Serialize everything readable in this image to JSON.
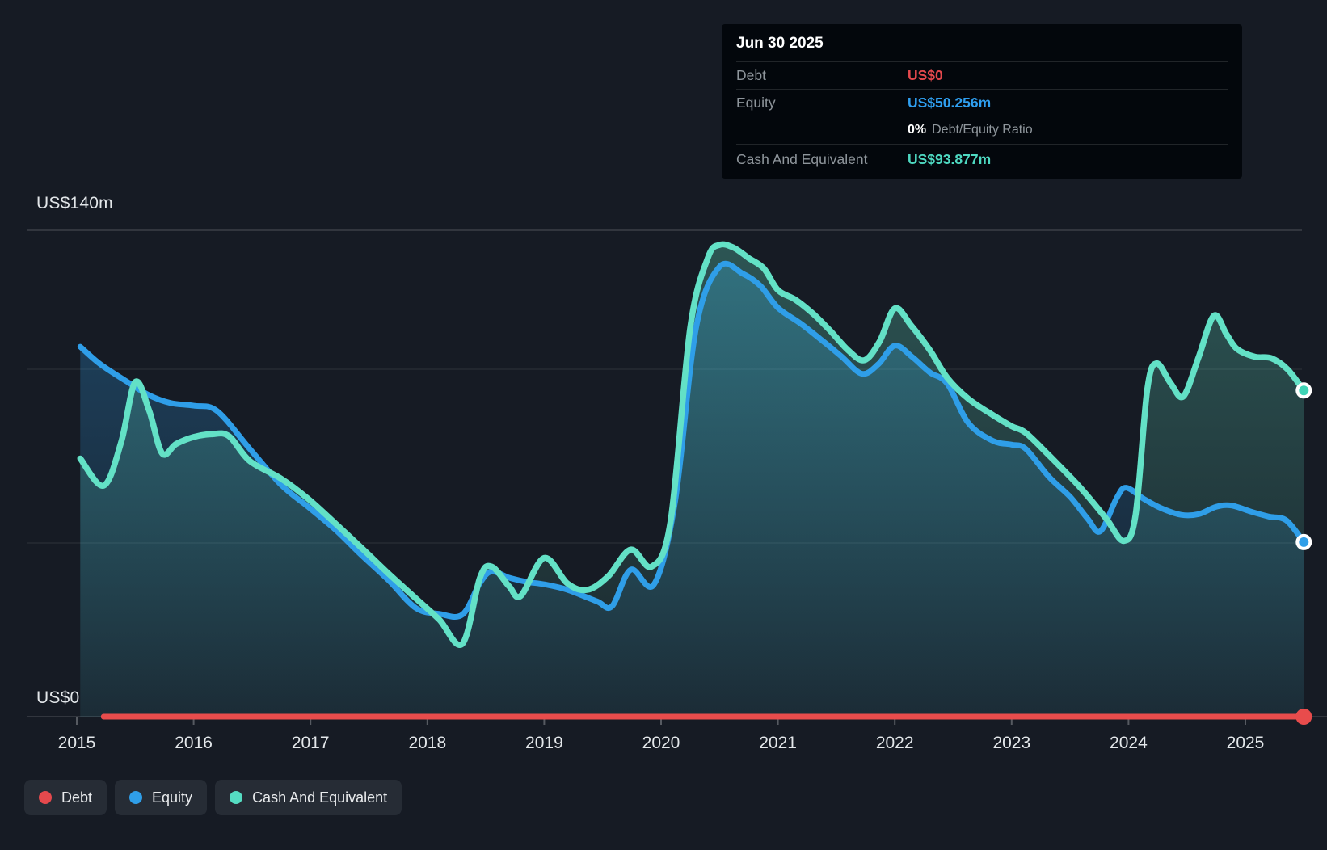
{
  "axis": {
    "y_top_label": "US$140m",
    "y_zero_label": "US$0"
  },
  "tooltip": {
    "title": "Jun 30 2025",
    "debt_label": "Debt",
    "debt_value": "US$0",
    "equity_label": "Equity",
    "equity_value": "US$50.256m",
    "ratio_value": "0%",
    "ratio_label": "Debt/Equity Ratio",
    "cash_label": "Cash And Equivalent",
    "cash_value": "US$93.877m"
  },
  "legend": {
    "debt": "Debt",
    "equity": "Equity",
    "cash": "Cash And Equivalent"
  },
  "colors": {
    "debt": "#e84c4c",
    "equity": "#2f9ee8",
    "cash": "#63e1c6",
    "background": "#161b24",
    "grid_major": "rgba(255,255,255,0.16)",
    "grid_minor": "rgba(255,255,255,0.07)"
  },
  "chart_data": {
    "type": "area",
    "title": "Debt to Equity history",
    "x_tick_labels": [
      "2015",
      "2016",
      "2017",
      "2018",
      "2019",
      "2020",
      "2021",
      "2022",
      "2023",
      "2024",
      "2025"
    ],
    "x_ticks": [
      2015,
      2016,
      2017,
      2018,
      2019,
      2020,
      2021,
      2022,
      2023,
      2024,
      2025
    ],
    "x_range": [
      2014.95,
      2025.5
    ],
    "y_axis": {
      "min": 0,
      "max": 140,
      "unit": "US$ millions",
      "gridlines": [
        140,
        100,
        50,
        0
      ],
      "gridline_labels": {
        "140": "US$140m",
        "0": "US$0"
      }
    },
    "legend_position": "bottom-left",
    "series": [
      {
        "key": "equity",
        "name": "Equity",
        "color": "#2f9ee8",
        "last_value": 50.256,
        "points": [
          [
            2015.03,
            106.5
          ],
          [
            2015.2,
            101.5
          ],
          [
            2015.45,
            96
          ],
          [
            2015.62,
            92.5
          ],
          [
            2015.8,
            90.3
          ],
          [
            2016.0,
            89.5
          ],
          [
            2016.2,
            88
          ],
          [
            2016.48,
            77.1
          ],
          [
            2016.75,
            66.7
          ],
          [
            2016.98,
            60.4
          ],
          [
            2017.21,
            53.9
          ],
          [
            2017.44,
            46.4
          ],
          [
            2017.67,
            39.2
          ],
          [
            2017.9,
            31.3
          ],
          [
            2018.1,
            29.6
          ],
          [
            2018.3,
            29.4
          ],
          [
            2018.45,
            38.5
          ],
          [
            2018.55,
            41.8
          ],
          [
            2018.7,
            40
          ],
          [
            2018.85,
            38.8
          ],
          [
            2019.0,
            38.1
          ],
          [
            2019.2,
            36.5
          ],
          [
            2019.45,
            33.2
          ],
          [
            2019.58,
            31.8
          ],
          [
            2019.74,
            42.3
          ],
          [
            2019.94,
            38.1
          ],
          [
            2020.12,
            62
          ],
          [
            2020.3,
            112
          ],
          [
            2020.5,
            129.5
          ],
          [
            2020.7,
            127.5
          ],
          [
            2020.85,
            124
          ],
          [
            2021.0,
            117.7
          ],
          [
            2021.2,
            113
          ],
          [
            2021.4,
            107.7
          ],
          [
            2021.55,
            103.5
          ],
          [
            2021.72,
            98.7
          ],
          [
            2021.86,
            101.5
          ],
          [
            2022.0,
            106.8
          ],
          [
            2022.15,
            103.5
          ],
          [
            2022.3,
            99.1
          ],
          [
            2022.45,
            95.8
          ],
          [
            2022.63,
            84.5
          ],
          [
            2022.84,
            79.4
          ],
          [
            2023.0,
            78.3
          ],
          [
            2023.12,
            77.1
          ],
          [
            2023.32,
            69
          ],
          [
            2023.5,
            63.3
          ],
          [
            2023.65,
            57
          ],
          [
            2023.76,
            53.4
          ],
          [
            2023.9,
            63
          ],
          [
            2023.98,
            65.9
          ],
          [
            2024.13,
            62.7
          ],
          [
            2024.28,
            60
          ],
          [
            2024.45,
            58.1
          ],
          [
            2024.6,
            58.3
          ],
          [
            2024.75,
            60.4
          ],
          [
            2024.88,
            60.8
          ],
          [
            2025.05,
            59
          ],
          [
            2025.2,
            57.6
          ],
          [
            2025.35,
            56.5
          ],
          [
            2025.5,
            50.256
          ]
        ]
      },
      {
        "key": "cash",
        "name": "Cash And Equivalent",
        "color": "#63e1c6",
        "last_value": 93.877,
        "points": [
          [
            2015.03,
            74.3
          ],
          [
            2015.23,
            66.5
          ],
          [
            2015.38,
            79
          ],
          [
            2015.5,
            96.3
          ],
          [
            2015.62,
            88
          ],
          [
            2015.73,
            75.8
          ],
          [
            2015.85,
            78.5
          ],
          [
            2016.0,
            80.5
          ],
          [
            2016.15,
            81.3
          ],
          [
            2016.3,
            80.8
          ],
          [
            2016.48,
            73.6
          ],
          [
            2016.75,
            68.5
          ],
          [
            2016.98,
            62.7
          ],
          [
            2017.21,
            55.7
          ],
          [
            2017.44,
            48.5
          ],
          [
            2017.67,
            41.1
          ],
          [
            2017.9,
            34.1
          ],
          [
            2018.1,
            28
          ],
          [
            2018.3,
            21
          ],
          [
            2018.45,
            40
          ],
          [
            2018.55,
            43.2
          ],
          [
            2018.7,
            37.5
          ],
          [
            2018.8,
            34.8
          ],
          [
            2019.0,
            45.7
          ],
          [
            2019.2,
            38.3
          ],
          [
            2019.37,
            36.5
          ],
          [
            2019.55,
            40.5
          ],
          [
            2019.74,
            48.1
          ],
          [
            2019.92,
            43.2
          ],
          [
            2020.08,
            56
          ],
          [
            2020.25,
            112
          ],
          [
            2020.4,
            132
          ],
          [
            2020.5,
            135.8
          ],
          [
            2020.62,
            135
          ],
          [
            2020.75,
            132
          ],
          [
            2020.88,
            129
          ],
          [
            2021.0,
            122.8
          ],
          [
            2021.15,
            120
          ],
          [
            2021.3,
            116
          ],
          [
            2021.45,
            111
          ],
          [
            2021.6,
            105.5
          ],
          [
            2021.74,
            102.6
          ],
          [
            2021.87,
            108
          ],
          [
            2022.0,
            117.5
          ],
          [
            2022.14,
            112.6
          ],
          [
            2022.3,
            105.5
          ],
          [
            2022.45,
            97.5
          ],
          [
            2022.63,
            91.5
          ],
          [
            2022.84,
            86.8
          ],
          [
            2023.0,
            83.6
          ],
          [
            2023.12,
            81.7
          ],
          [
            2023.32,
            75.2
          ],
          [
            2023.55,
            67.3
          ],
          [
            2023.7,
            61.5
          ],
          [
            2023.82,
            56.5
          ],
          [
            2023.96,
            50.6
          ],
          [
            2024.06,
            58
          ],
          [
            2024.16,
            94
          ],
          [
            2024.24,
            101.7
          ],
          [
            2024.36,
            96
          ],
          [
            2024.47,
            92.2
          ],
          [
            2024.6,
            103.5
          ],
          [
            2024.73,
            115.4
          ],
          [
            2024.84,
            110
          ],
          [
            2024.93,
            105.8
          ],
          [
            2025.08,
            103.6
          ],
          [
            2025.22,
            103.2
          ],
          [
            2025.36,
            100
          ],
          [
            2025.5,
            93.877
          ]
        ]
      },
      {
        "key": "debt",
        "name": "Debt",
        "color": "#e84c4c",
        "last_value": 0,
        "points": [
          [
            2015.23,
            0
          ],
          [
            2025.5,
            0
          ]
        ]
      }
    ]
  }
}
